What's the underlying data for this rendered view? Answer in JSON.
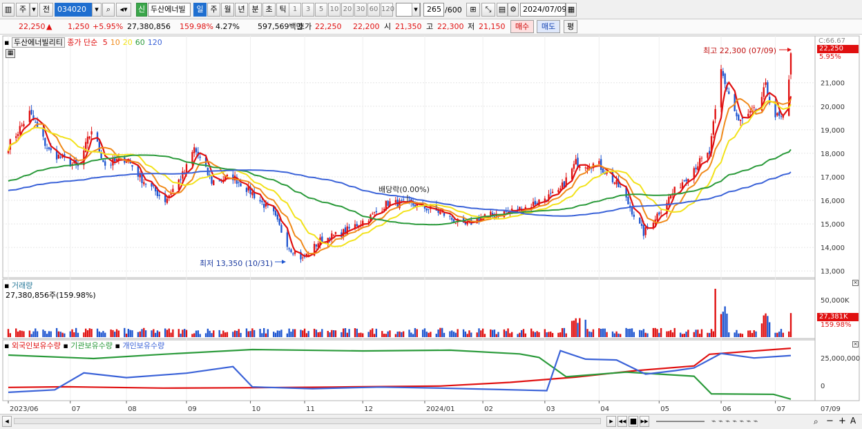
{
  "toolbar": {
    "market": "주",
    "prev_label": "전",
    "code": "034020",
    "new_badge": "신",
    "stock_name": "두산에너빌",
    "periods": [
      "일",
      "주",
      "월",
      "년",
      "분",
      "초",
      "틱"
    ],
    "selected_period": "일",
    "nums": [
      "1",
      "3",
      "5",
      "10",
      "20",
      "30",
      "60",
      "120"
    ],
    "count": "265",
    "count_total": "/600",
    "date": "2024/07/09"
  },
  "quote": {
    "price": "22,250",
    "change_arrow": "▲",
    "change": "1,250",
    "change_pct": "+5.95%",
    "volume": "27,380,856",
    "volume_ratio": "159.98%",
    "turnover": "4.27%",
    "amount": "597,569백만",
    "hoga_label": "호가",
    "ask": "22,250",
    "bid": "22,200",
    "open_label": "시",
    "open": "21,350",
    "high_label": "고",
    "high": "22,300",
    "low_label": "저",
    "low": "21,150",
    "buy_label": "매수",
    "sell_label": "매도",
    "eval_label": "평"
  },
  "colors": {
    "up": "#e01010",
    "down": "#1f56d0",
    "ma5": "#e01010",
    "ma10": "#f08a1a",
    "ma20": "#f2e21a",
    "ma60": "#2a9a3a",
    "ma120": "#3a62d8",
    "foreign": "#e01010",
    "institution": "#2a9a3a",
    "individual": "#3a62d8"
  },
  "price_panel": {
    "legend_name": "두산에너빌리티",
    "legend_ma_label": "종가 단순",
    "ma_periods": [
      "5",
      "10",
      "20",
      "60",
      "120"
    ],
    "corner_label": "C:66.67",
    "last_price_tag": "22,250",
    "last_pct_tag": "5.95%",
    "high_annotation": "최고 22,300 (07/09)",
    "low_annotation": "최저 13,350 (10/31)",
    "event_annotation": "배당락(0.00%)"
  },
  "volume_panel": {
    "title": "거래량",
    "subtitle": "27,380,856주(159.98%)",
    "axis_label": "50,000K",
    "last_tag": "27,381K",
    "last_pct": "159.98%"
  },
  "holding_panel": {
    "legend": [
      "외국인보유수량",
      "기관보유수량",
      "개인보유수량"
    ],
    "ticks": [
      "25,000,000",
      "0"
    ]
  },
  "chart_data": {
    "type": "candlestick",
    "title": "두산에너빌리티",
    "y_ticks": [
      13000,
      14000,
      15000,
      16000,
      17000,
      18000,
      19000,
      20000,
      21000
    ],
    "y_tick_labels": [
      "13,000",
      "14,000",
      "15,000",
      "16,000",
      "17,000",
      "18,000",
      "19,000",
      "20,000",
      "21,000"
    ],
    "ylim": [
      12800,
      22900
    ],
    "x_labels": [
      "2023/06",
      "07",
      "08",
      "09",
      "10",
      "11",
      "12",
      "2024/01",
      "02",
      "03",
      "04",
      "05",
      "06",
      "07",
      "07/09"
    ],
    "close_keypoints": [
      {
        "date": "2023/06/01",
        "close": 18300
      },
      {
        "date": "2023/06/12",
        "close": 19700
      },
      {
        "date": "2023/06/22",
        "close": 18100
      },
      {
        "date": "2023/07/07",
        "close": 17400
      },
      {
        "date": "2023/07/14",
        "close": 19000
      },
      {
        "date": "2023/07/21",
        "close": 17500
      },
      {
        "date": "2023/08/01",
        "close": 17800
      },
      {
        "date": "2023/08/09",
        "close": 16900
      },
      {
        "date": "2023/08/21",
        "close": 16000
      },
      {
        "date": "2023/08/31",
        "close": 17200
      },
      {
        "date": "2023/09/05",
        "close": 18200
      },
      {
        "date": "2023/09/14",
        "close": 16800
      },
      {
        "date": "2023/09/25",
        "close": 17000
      },
      {
        "date": "2023/10/05",
        "close": 16300
      },
      {
        "date": "2023/10/16",
        "close": 15400
      },
      {
        "date": "2023/10/24",
        "close": 14000
      },
      {
        "date": "2023/10/31",
        "close": 13500
      },
      {
        "date": "2023/11/09",
        "close": 14300
      },
      {
        "date": "2023/11/20",
        "close": 14600
      },
      {
        "date": "2023/12/05",
        "close": 15300
      },
      {
        "date": "2023/12/14",
        "close": 15900
      },
      {
        "date": "2023/12/28",
        "close": 15800
      },
      {
        "date": "2024/01/10",
        "close": 15500
      },
      {
        "date": "2024/01/22",
        "close": 14900
      },
      {
        "date": "2024/02/01",
        "close": 15300
      },
      {
        "date": "2024/02/13",
        "close": 15500
      },
      {
        "date": "2024/02/23",
        "close": 15700
      },
      {
        "date": "2024/03/04",
        "close": 16100
      },
      {
        "date": "2024/03/11",
        "close": 16300
      },
      {
        "date": "2024/03/20",
        "close": 17600
      },
      {
        "date": "2024/04/01",
        "close": 17500
      },
      {
        "date": "2024/04/12",
        "close": 16500
      },
      {
        "date": "2024/04/24",
        "close": 14600
      },
      {
        "date": "2024/05/08",
        "close": 16200
      },
      {
        "date": "2024/05/20",
        "close": 17400
      },
      {
        "date": "2024/05/28",
        "close": 18000
      },
      {
        "date": "2024/06/03",
        "close": 21500
      },
      {
        "date": "2024/06/12",
        "close": 19300
      },
      {
        "date": "2024/06/21",
        "close": 19800
      },
      {
        "date": "2024/06/26",
        "close": 20800
      },
      {
        "date": "2024/07/01",
        "close": 19600
      },
      {
        "date": "2024/07/05",
        "close": 19400
      },
      {
        "date": "2024/07/08",
        "close": 21000
      },
      {
        "date": "2024/07/09",
        "close": 22250
      }
    ],
    "last": {
      "date": "2024/07/09",
      "open": 21350,
      "high": 22300,
      "low": 21150,
      "close": 22250
    },
    "high_point": {
      "date": "2024/07/09",
      "value": 22300
    },
    "low_point": {
      "date": "2023/10/31",
      "value": 13350
    },
    "moving_averages": [
      "5",
      "10",
      "20",
      "60",
      "120"
    ],
    "volume_unit": "K",
    "last_volume": 27381
  }
}
